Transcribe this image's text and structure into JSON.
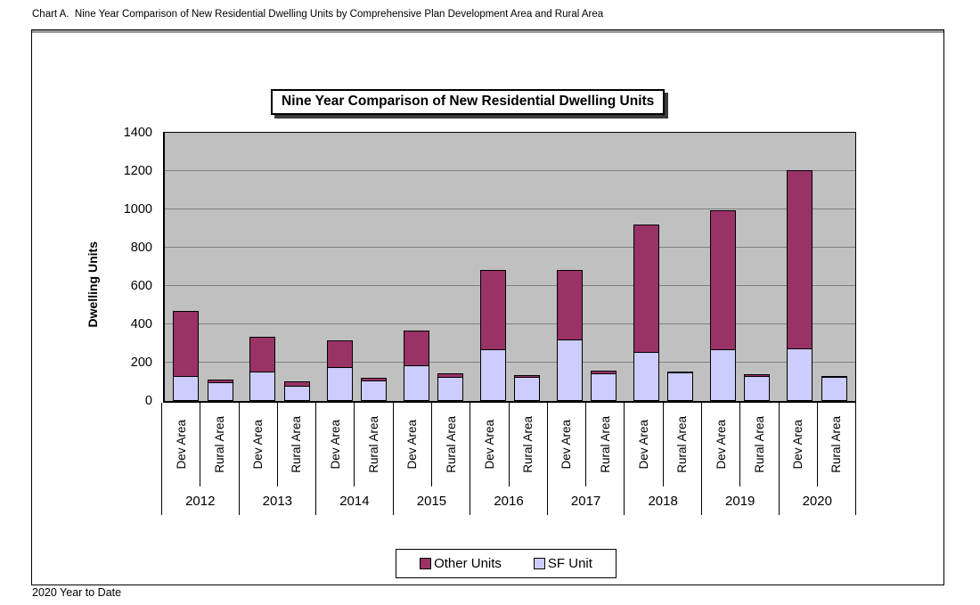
{
  "header": {
    "caption": "Chart A.  Nine Year Comparison of New Residential Dwelling Units by Comprehensive Plan Development Area and Rural Area"
  },
  "chart": {
    "title": "Nine Year Comparison of New Residential Dwelling Units"
  },
  "footer": {
    "note": "2020 Year to Date"
  },
  "chart_data": {
    "type": "bar",
    "stacked": true,
    "title": "Nine Year Comparison of New Residential Dwelling Units",
    "xlabel": "",
    "ylabel": "Dwelling Units",
    "ylim": [
      0,
      1400
    ],
    "ytick_interval": 200,
    "grid": "horizontal",
    "legend_position": "bottom",
    "plot_bg_color": "#c0c0c0",
    "gridline_color": "#808080",
    "years": [
      "2012",
      "2013",
      "2014",
      "2015",
      "2016",
      "2017",
      "2018",
      "2019",
      "2020"
    ],
    "area_labels": [
      "Dev Area",
      "Rural Area"
    ],
    "series": [
      {
        "name": "Other Units",
        "color": "#993366"
      },
      {
        "name": "SF Unit",
        "color": "#ccccff"
      }
    ],
    "bars": [
      {
        "year": "2012",
        "area": "Dev Area",
        "sf_unit": 130,
        "other_units": 345
      },
      {
        "year": "2012",
        "area": "Rural Area",
        "sf_unit": 100,
        "other_units": 18
      },
      {
        "year": "2013",
        "area": "Dev Area",
        "sf_unit": 155,
        "other_units": 185
      },
      {
        "year": "2013",
        "area": "Rural Area",
        "sf_unit": 80,
        "other_units": 28
      },
      {
        "year": "2014",
        "area": "Dev Area",
        "sf_unit": 178,
        "other_units": 142
      },
      {
        "year": "2014",
        "area": "Rural Area",
        "sf_unit": 105,
        "other_units": 20
      },
      {
        "year": "2015",
        "area": "Dev Area",
        "sf_unit": 185,
        "other_units": 185
      },
      {
        "year": "2015",
        "area": "Rural Area",
        "sf_unit": 125,
        "other_units": 23
      },
      {
        "year": "2016",
        "area": "Dev Area",
        "sf_unit": 268,
        "other_units": 422
      },
      {
        "year": "2016",
        "area": "Rural Area",
        "sf_unit": 125,
        "other_units": 15
      },
      {
        "year": "2017",
        "area": "Dev Area",
        "sf_unit": 322,
        "other_units": 366
      },
      {
        "year": "2017",
        "area": "Rural Area",
        "sf_unit": 145,
        "other_units": 20
      },
      {
        "year": "2018",
        "area": "Dev Area",
        "sf_unit": 255,
        "other_units": 670
      },
      {
        "year": "2018",
        "area": "Rural Area",
        "sf_unit": 150,
        "other_units": 10
      },
      {
        "year": "2019",
        "area": "Dev Area",
        "sf_unit": 272,
        "other_units": 728
      },
      {
        "year": "2019",
        "area": "Rural Area",
        "sf_unit": 130,
        "other_units": 15
      },
      {
        "year": "2020",
        "area": "Dev Area",
        "sf_unit": 275,
        "other_units": 935
      },
      {
        "year": "2020",
        "area": "Rural Area",
        "sf_unit": 125,
        "other_units": 8
      }
    ]
  }
}
